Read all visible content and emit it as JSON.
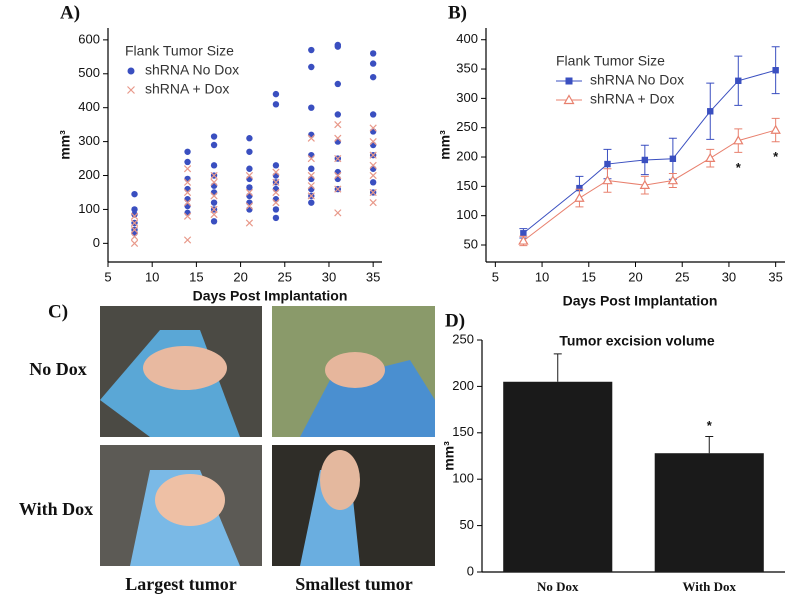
{
  "chart_data": [
    {
      "type": "scatter",
      "panel_label": "A)",
      "xlabel": "Days Post Implantation",
      "ylabel": "mm³",
      "legend_title": "Flank Tumor Size",
      "xlim": [
        5,
        36
      ],
      "xticks": [
        5,
        10,
        15,
        20,
        25,
        30,
        35
      ],
      "ylim": [
        -55,
        635
      ],
      "yticks": [
        0,
        100,
        200,
        300,
        400,
        500,
        600
      ],
      "series": [
        {
          "name": "shRNA No Dox",
          "color": "#3a4fc0",
          "marker": "circle",
          "x": [
            8,
            8,
            8,
            8,
            8,
            8,
            14,
            14,
            14,
            14,
            14,
            14,
            14,
            17,
            17,
            17,
            17,
            17,
            17,
            17,
            17,
            17,
            21,
            21,
            21,
            21,
            21,
            21,
            21,
            21,
            24,
            24,
            24,
            24,
            24,
            24,
            24,
            24,
            24,
            28,
            28,
            28,
            28,
            28,
            28,
            28,
            28,
            28,
            28,
            31,
            31,
            31,
            31,
            31,
            31,
            31,
            31,
            31,
            35,
            35,
            35,
            35,
            35,
            35,
            35,
            35,
            35,
            35
          ],
          "values": [
            145,
            100,
            85,
            60,
            40,
            30,
            270,
            240,
            190,
            160,
            130,
            110,
            90,
            315,
            290,
            230,
            200,
            170,
            150,
            120,
            100,
            65,
            310,
            270,
            220,
            190,
            165,
            140,
            120,
            100,
            440,
            410,
            230,
            200,
            180,
            160,
            130,
            100,
            75,
            570,
            520,
            400,
            320,
            260,
            220,
            190,
            160,
            140,
            120,
            585,
            580,
            470,
            380,
            300,
            250,
            210,
            190,
            160,
            560,
            530,
            490,
            380,
            330,
            290,
            260,
            220,
            180,
            150
          ]
        },
        {
          "name": "shRNA + Dox",
          "color": "#e8998a",
          "marker": "x",
          "x": [
            8,
            8,
            8,
            8,
            8,
            14,
            14,
            14,
            14,
            14,
            14,
            17,
            17,
            17,
            17,
            17,
            21,
            21,
            21,
            21,
            24,
            24,
            24,
            24,
            28,
            28,
            28,
            28,
            28,
            31,
            31,
            31,
            31,
            31,
            31,
            35,
            35,
            35,
            35,
            35,
            35,
            35
          ],
          "values": [
            80,
            60,
            40,
            20,
            0,
            220,
            180,
            150,
            120,
            80,
            10,
            200,
            180,
            140,
            100,
            85,
            200,
            150,
            110,
            60,
            210,
            180,
            150,
            120,
            310,
            250,
            200,
            170,
            140,
            350,
            310,
            250,
            200,
            160,
            90,
            340,
            300,
            260,
            230,
            200,
            150,
            120
          ]
        }
      ]
    },
    {
      "type": "line",
      "panel_label": "B)",
      "xlabel": "Days Post Implantation",
      "ylabel": "mm³",
      "legend_title": "Flank Tumor Size",
      "significance_label": "*",
      "xlim": [
        4,
        36
      ],
      "xticks": [
        5,
        10,
        15,
        20,
        25,
        30,
        35
      ],
      "ylim": [
        21,
        420
      ],
      "yticks": [
        50,
        100,
        150,
        200,
        250,
        300,
        350,
        400
      ],
      "x": [
        8,
        14,
        17,
        21,
        24,
        28,
        31,
        35
      ],
      "series": [
        {
          "name": "shRNA No Dox",
          "color": "#3a4fc0",
          "marker": "square",
          "values": [
            70,
            147,
            188,
            195,
            197,
            278,
            330,
            348
          ],
          "errors": [
            8,
            20,
            25,
            25,
            35,
            48,
            42,
            40
          ]
        },
        {
          "name": "shRNA + Dox",
          "color": "#e8806e",
          "marker": "triangle",
          "values": [
            57,
            130,
            160,
            152,
            160,
            198,
            228,
            246
          ],
          "errors": [
            8,
            15,
            20,
            15,
            12,
            15,
            20,
            20
          ],
          "significant": [
            false,
            false,
            false,
            false,
            false,
            false,
            true,
            true
          ]
        }
      ]
    },
    {
      "type": "bar",
      "panel_label": "D)",
      "title": "Tumor excision volume",
      "ylabel": "mm³",
      "significance_label": "*",
      "color": "#1a1a1a",
      "categories": [
        "No Dox",
        "With Dox"
      ],
      "values": [
        205,
        128
      ],
      "errors": [
        30,
        18
      ],
      "significant": [
        false,
        true
      ],
      "ylim": [
        0,
        250
      ],
      "yticks": [
        0,
        50,
        100,
        150,
        200,
        250
      ]
    }
  ],
  "photo_panel": {
    "label": "C)",
    "rows": [
      "No Dox",
      "With Dox"
    ],
    "columns": [
      "Largest tumor",
      "Smallest tumor"
    ]
  }
}
